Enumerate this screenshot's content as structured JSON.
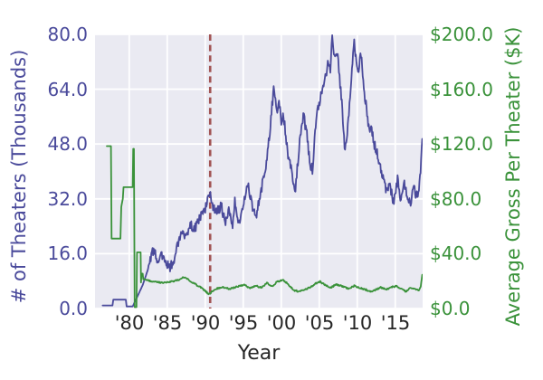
{
  "colors": {
    "theaters_blue": "#4a4a9b",
    "gross_green": "#3a923a",
    "tick_dark": "#262626",
    "plot_background": "#eaeaf2",
    "grid_white": "#ffffff",
    "vline_red": "#a25454"
  },
  "chart_data": {
    "type": "line",
    "title": "",
    "grid": true,
    "background": "#eaeaf2",
    "grid_color": "#ffffff",
    "legend": "none",
    "x_axis": {
      "label": "Year",
      "ticks": [
        "'80",
        "'85",
        "'90",
        "'95",
        "'00",
        "'05",
        "'10",
        "'15"
      ],
      "tick_years": [
        1980,
        1985,
        1990,
        1995,
        2000,
        2005,
        2010,
        2015
      ],
      "range": [
        1975.5,
        2018.6
      ]
    },
    "left_axis": {
      "label": "# of Theaters (Thousands)",
      "ticks": [
        "80.0",
        "64.0",
        "48.0",
        "32.0",
        "16.0",
        "0.0"
      ],
      "tick_values": [
        80,
        64,
        48,
        32,
        16,
        0
      ],
      "range": [
        0,
        80
      ],
      "color": "#4a4a9b"
    },
    "right_axis": {
      "label": "Average Gross Per Theater ($K)",
      "ticks": [
        "$200.0",
        "$160.0",
        "$120.0",
        "$80.0",
        "$40.0",
        "$0.0"
      ],
      "tick_values": [
        200,
        160,
        120,
        80,
        40,
        0
      ],
      "range": [
        0,
        200
      ],
      "color": "#3a923a"
    },
    "vline": {
      "x": 1990.65,
      "style": "dashed",
      "color": "#a25454"
    },
    "series": [
      {
        "name": "# of Theaters (Thousands)",
        "id": "theaters-line",
        "axis": "left",
        "color": "#4a4a9b",
        "noise": 1.5,
        "noise_from": 1982.5,
        "points": [
          [
            1976.5,
            0.9
          ],
          [
            1977.8,
            0.9
          ],
          [
            1977.9,
            2.6
          ],
          [
            1979.55,
            2.6
          ],
          [
            1979.65,
            0.6
          ],
          [
            1980.45,
            0.6
          ],
          [
            1981.1,
            3.6
          ],
          [
            1981.8,
            7.0
          ],
          [
            1982.4,
            11.0
          ],
          [
            1983.2,
            17.6
          ],
          [
            1983.8,
            13.4
          ],
          [
            1984.2,
            15.2
          ],
          [
            1984.8,
            13.6
          ],
          [
            1985.3,
            11.6
          ],
          [
            1985.9,
            14.5
          ],
          [
            1986.3,
            19.0
          ],
          [
            1986.9,
            21.6
          ],
          [
            1987.5,
            20.5
          ],
          [
            1988.1,
            24.2
          ],
          [
            1988.6,
            23.0
          ],
          [
            1989.3,
            26.6
          ],
          [
            1990.0,
            29.3
          ],
          [
            1990.6,
            33.5
          ],
          [
            1991.1,
            29.3
          ],
          [
            1991.6,
            28.2
          ],
          [
            1992.1,
            30.0
          ],
          [
            1992.6,
            25.2
          ],
          [
            1993.1,
            28.8
          ],
          [
            1993.6,
            24.6
          ],
          [
            1993.9,
            31.0
          ],
          [
            1994.4,
            24.2
          ],
          [
            1995.0,
            30.0
          ],
          [
            1995.6,
            37.0
          ],
          [
            1996.0,
            31.5
          ],
          [
            1996.6,
            26.3
          ],
          [
            1997.2,
            33.0
          ],
          [
            1997.9,
            40.3
          ],
          [
            1998.5,
            51.7
          ],
          [
            1999.0,
            64.5
          ],
          [
            1999.4,
            57.0
          ],
          [
            1999.7,
            61.5
          ],
          [
            2000.0,
            54.3
          ],
          [
            2000.3,
            56.0
          ],
          [
            2000.9,
            45.0
          ],
          [
            2001.3,
            41.0
          ],
          [
            2001.8,
            33.2
          ],
          [
            2002.5,
            50.8
          ],
          [
            2002.9,
            56.3
          ],
          [
            2003.3,
            52.0
          ],
          [
            2003.8,
            42.2
          ],
          [
            2004.1,
            40.5
          ],
          [
            2004.6,
            56.0
          ],
          [
            2005.2,
            62.0
          ],
          [
            2005.8,
            67.0
          ],
          [
            2006.2,
            72.0
          ],
          [
            2006.45,
            68.5
          ],
          [
            2006.7,
            79.5
          ],
          [
            2007.0,
            73.0
          ],
          [
            2007.35,
            75.0
          ],
          [
            2007.9,
            62.0
          ],
          [
            2008.4,
            45.8
          ],
          [
            2008.9,
            56.0
          ],
          [
            2009.3,
            70.0
          ],
          [
            2009.6,
            77.2
          ],
          [
            2010.1,
            69.0
          ],
          [
            2010.5,
            74.0
          ],
          [
            2011.0,
            62.0
          ],
          [
            2011.5,
            53.0
          ],
          [
            2011.9,
            51.5
          ],
          [
            2012.4,
            46.5
          ],
          [
            2012.9,
            43.3
          ],
          [
            2013.4,
            38.0
          ],
          [
            2013.9,
            33.6
          ],
          [
            2014.3,
            36.3
          ],
          [
            2014.75,
            30.8
          ],
          [
            2015.3,
            38.0
          ],
          [
            2015.75,
            31.9
          ],
          [
            2016.2,
            36.3
          ],
          [
            2016.7,
            31.9
          ],
          [
            2017.1,
            30.8
          ],
          [
            2017.4,
            35.4
          ],
          [
            2017.9,
            32.3
          ],
          [
            2018.25,
            38.0
          ],
          [
            2018.55,
            49.5
          ]
        ]
      },
      {
        "name": "Average Gross Per Theater ($K)",
        "id": "avg-gross-line",
        "axis": "right",
        "color": "#3a923a",
        "noise": 0.55,
        "noise_from": 1982.0,
        "points": [
          [
            1977.05,
            118.5
          ],
          [
            1977.6,
            118.5
          ],
          [
            1977.68,
            51.0
          ],
          [
            1978.85,
            51.0
          ],
          [
            1978.95,
            74.0
          ],
          [
            1979.15,
            80.0
          ],
          [
            1979.25,
            88.5
          ],
          [
            1980.45,
            88.5
          ],
          [
            1980.52,
            116.5
          ],
          [
            1980.62,
            116.5
          ],
          [
            1980.72,
            1.0
          ],
          [
            1980.95,
            1.0
          ],
          [
            1981.02,
            41.0
          ],
          [
            1981.5,
            41.0
          ],
          [
            1981.55,
            19.0
          ],
          [
            1981.62,
            25.5
          ],
          [
            1981.78,
            25.5
          ],
          [
            1981.85,
            21.3
          ],
          [
            1982.6,
            20.3
          ],
          [
            1983.6,
            19.3
          ],
          [
            1984.6,
            18.8
          ],
          [
            1985.6,
            19.8
          ],
          [
            1986.6,
            21.0
          ],
          [
            1987.3,
            23.2
          ],
          [
            1988.3,
            19.0
          ],
          [
            1989.2,
            16.2
          ],
          [
            1990.0,
            12.8
          ],
          [
            1990.5,
            10.4
          ],
          [
            1991.3,
            14.2
          ],
          [
            1992.2,
            15.6
          ],
          [
            1993.2,
            14.4
          ],
          [
            1994.2,
            16.0
          ],
          [
            1995.2,
            17.2
          ],
          [
            1995.9,
            14.8
          ],
          [
            1996.6,
            16.6
          ],
          [
            1997.4,
            15.2
          ],
          [
            1998.1,
            18.6
          ],
          [
            1998.8,
            16.2
          ],
          [
            1999.5,
            19.8
          ],
          [
            2000.3,
            20.6
          ],
          [
            2001.0,
            17.2
          ],
          [
            2001.7,
            13.2
          ],
          [
            2002.4,
            12.4
          ],
          [
            2003.1,
            13.8
          ],
          [
            2003.9,
            15.6
          ],
          [
            2004.5,
            18.2
          ],
          [
            2005.1,
            19.6
          ],
          [
            2005.8,
            17.0
          ],
          [
            2006.5,
            15.4
          ],
          [
            2007.3,
            17.6
          ],
          [
            2008.1,
            16.0
          ],
          [
            2008.9,
            14.4
          ],
          [
            2009.6,
            16.6
          ],
          [
            2010.4,
            15.0
          ],
          [
            2011.1,
            13.8
          ],
          [
            2011.8,
            12.4
          ],
          [
            2012.4,
            13.6
          ],
          [
            2013.1,
            15.4
          ],
          [
            2013.8,
            14.0
          ],
          [
            2014.5,
            15.6
          ],
          [
            2015.2,
            16.4
          ],
          [
            2015.9,
            13.8
          ],
          [
            2016.4,
            12.4
          ],
          [
            2017.0,
            15.0
          ],
          [
            2017.6,
            14.2
          ],
          [
            2018.1,
            13.6
          ],
          [
            2018.35,
            15.8
          ],
          [
            2018.55,
            24.6
          ]
        ]
      }
    ]
  }
}
